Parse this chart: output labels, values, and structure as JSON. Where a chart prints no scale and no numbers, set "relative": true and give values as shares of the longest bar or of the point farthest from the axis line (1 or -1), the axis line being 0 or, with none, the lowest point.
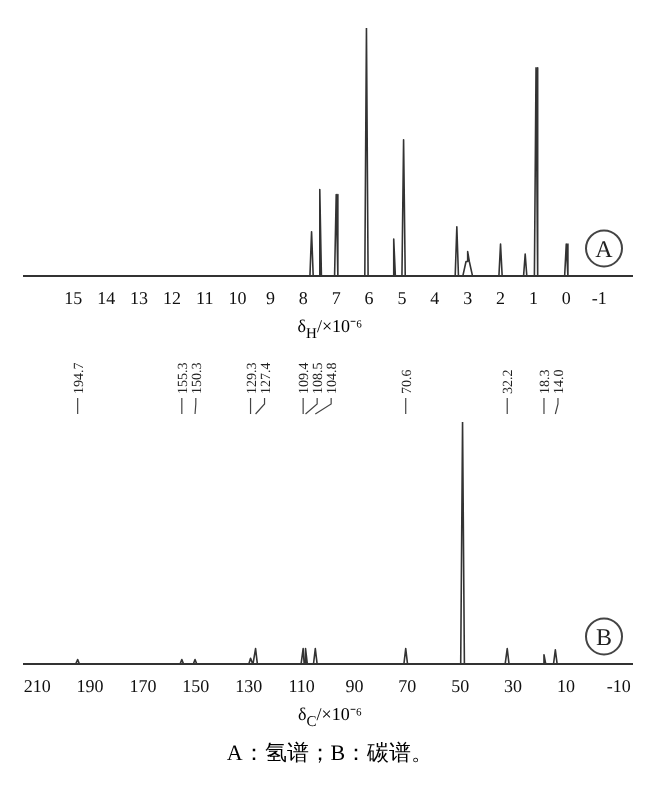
{
  "chart_data": [
    {
      "type": "line",
      "relative": true,
      "xlim": [
        16.5,
        -2
      ],
      "xticks": [
        15,
        14,
        13,
        12,
        11,
        10,
        9,
        8,
        7,
        6,
        5,
        4,
        3,
        2,
        1,
        0,
        -1
      ],
      "xlabel": "δ$_{H}$/×10⁻⁶",
      "series": [
        {
          "color": "#333333",
          "x": [
            16.5,
            7.8,
            7.75,
            7.7,
            7.55,
            7.5,
            7.45,
            7.05,
            7.0,
            6.95,
            6.13,
            6.08,
            6.03,
            5.3,
            5.25,
            5.2,
            5.0,
            4.95,
            4.9,
            3.38,
            3.33,
            3.28,
            3.15,
            3.05,
            3.0,
            2.95,
            2.85,
            2.05,
            2.0,
            1.95,
            1.3,
            1.25,
            1.2,
            0.97,
            0.92,
            0.87,
            0.05,
            0,
            -0.05,
            -2
          ],
          "values": [
            0,
            0,
            0.18,
            0,
            0,
            0.35,
            0,
            0,
            0.33,
            0,
            0,
            1,
            0,
            0,
            0.15,
            0,
            0,
            0.55,
            0,
            0,
            0.2,
            0,
            0,
            0.06,
            0.1,
            0.06,
            0,
            0,
            0.13,
            0,
            0,
            0.09,
            0,
            0,
            0.84,
            0,
            0,
            0.13,
            0,
            0
          ]
        }
      ],
      "annotations": [
        "A"
      ]
    },
    {
      "type": "line",
      "relative": true,
      "xlim": [
        215,
        -15
      ],
      "xticks": [
        210,
        190,
        170,
        150,
        130,
        110,
        90,
        70,
        50,
        30,
        10,
        -10
      ],
      "xlabel": "δ$_{C}$/×10⁻⁶",
      "series": [
        {
          "color": "#333333",
          "x": [
            215,
            195.5,
            194.7,
            194,
            156,
            155.3,
            154.6,
            151,
            150.3,
            149.6,
            130,
            129.3,
            128.4,
            127.4,
            126.7,
            110.2,
            109.4,
            109,
            108.5,
            107.8,
            105.5,
            104.8,
            104.1,
            71.3,
            70.6,
            69.9,
            49.8,
            49.1,
            48.4,
            33,
            32.2,
            31.5,
            19,
            18.3,
            17.6,
            14.7,
            14,
            13.3,
            -15
          ],
          "values": [
            0,
            0,
            0.02,
            0,
            0,
            0.02,
            0,
            0,
            0.02,
            0,
            0,
            0.025,
            0,
            0.065,
            0,
            0,
            0.065,
            0,
            0.065,
            0,
            0,
            0.065,
            0,
            0,
            0.065,
            0,
            0,
            1,
            0,
            0,
            0.065,
            0,
            0,
            0.04,
            0,
            0,
            0.06,
            0,
            0
          ]
        }
      ],
      "annotations": [
        {
          "text": "194.7",
          "x": 194.7
        },
        {
          "text": "155.3",
          "x": 155.3
        },
        {
          "text": "150.3",
          "x": 150.3
        },
        {
          "text": "129.3",
          "x": 129.3
        },
        {
          "text": "127.4",
          "x": 127.4
        },
        {
          "text": "109.4",
          "x": 109.4
        },
        {
          "text": "108.5",
          "x": 108.5
        },
        {
          "text": "104.8",
          "x": 104.8
        },
        {
          "text": "70.6",
          "x": 70.6
        },
        {
          "text": "32.2",
          "x": 32.2
        },
        {
          "text": "18.3",
          "x": 18.3
        },
        {
          "text": "14.0",
          "x": 14
        },
        "B",
        "A：氢谱；B：碳谱。"
      ]
    }
  ]
}
